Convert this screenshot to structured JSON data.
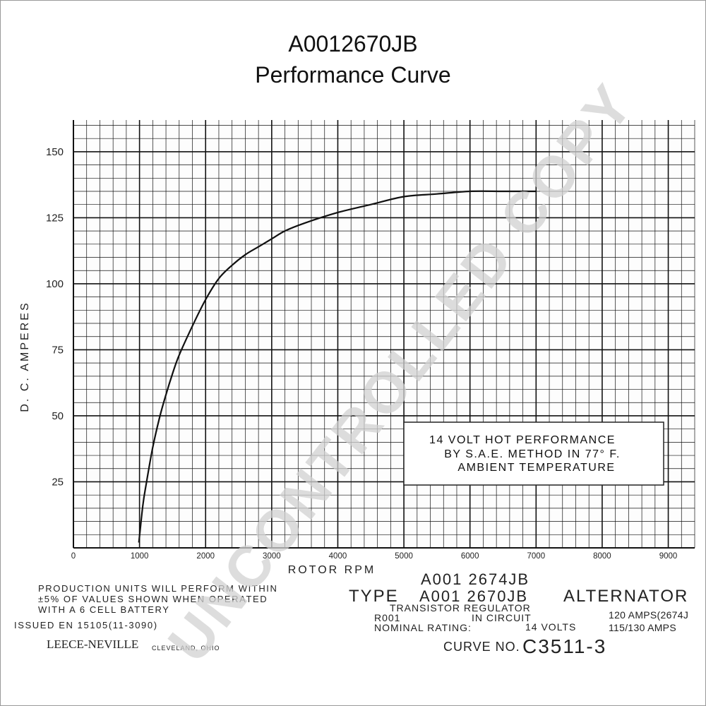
{
  "title_line1": "A0012670JB",
  "title_line2": "Performance Curve",
  "watermark": "UNCONTROLLED COPY",
  "chart_data": {
    "type": "line",
    "xlabel": "ROTOR RPM",
    "ylabel": "D. C. AMPERES",
    "xlim": [
      0,
      9400
    ],
    "ylim": [
      0,
      162
    ],
    "x_ticks": [
      0,
      1000,
      2000,
      3000,
      4000,
      5000,
      6000,
      7000,
      8000,
      9000
    ],
    "x_tick_labels": [
      "0",
      "1000",
      "2000",
      "3000",
      "4000",
      "5000",
      "6000",
      "7000",
      "8000",
      "9000"
    ],
    "y_ticks": [
      25,
      50,
      75,
      100,
      125,
      150
    ],
    "y_tick_labels": [
      "25",
      "50",
      "75",
      "100",
      "125",
      "150"
    ],
    "grid": true,
    "series": [
      {
        "x": [
          990,
          1050,
          1100,
          1200,
          1300,
          1400,
          1500,
          1600,
          1800,
          2000,
          2200,
          2400,
          2600,
          2800,
          3000,
          3200,
          3500,
          4000,
          4500,
          5000,
          5500,
          6000,
          6500,
          7000
        ],
        "y": [
          2,
          16,
          24,
          38,
          49,
          58,
          66,
          73,
          84,
          94,
          102,
          107,
          111,
          114,
          117,
          120,
          123,
          127,
          130,
          133,
          134,
          135,
          135,
          135
        ]
      }
    ]
  },
  "annotation": {
    "line1": "14 VOLT HOT PERFORMANCE",
    "line2": "BY S.A.E. METHOD IN 77° F.",
    "line3": "AMBIENT TEMPERATURE"
  },
  "footer": {
    "production_line1": "PRODUCTION UNITS WILL PERFORM WITHIN",
    "production_line2": "±5% OF VALUES SHOWN WHEN OPERATED",
    "production_line3": "WITH A 6 CELL BATTERY",
    "issued": "ISSUED EN 15105(11-3090)",
    "brand": "LEECE-NEVILLE",
    "brand_city": "CLEVELAND, OHIO",
    "model_alt": "A001 2674JB",
    "type_label": "TYPE",
    "model_main": "A001 2670JB",
    "product": "ALTERNATOR",
    "regulator": "TRANSISTOR REGULATOR",
    "r001": "R001",
    "in_circuit": "IN CIRCUIT",
    "nominal_label": "NOMINAL RATING:",
    "volts": "14 VOLTS",
    "amps_1": "120 AMPS(2674J",
    "amps_2": "115/130 AMPS",
    "curve_label": "CURVE NO.",
    "curve_no": "C3511-3"
  }
}
